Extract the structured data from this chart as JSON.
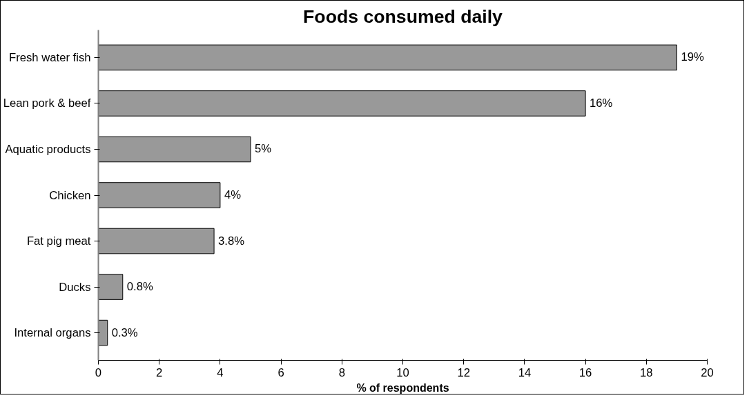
{
  "chart_data": {
    "type": "bar",
    "orientation": "horizontal",
    "title": "Foods consumed daily",
    "xlabel": "% of respondents",
    "categories": [
      "Fresh water fish",
      "Lean pork & beef",
      "Aquatic products",
      "Chicken",
      "Fat pig meat",
      "Ducks",
      "Internal organs"
    ],
    "values": [
      19,
      16,
      5,
      4,
      3.8,
      0.8,
      0.3
    ],
    "value_labels": [
      "19%",
      "16%",
      "5%",
      "4%",
      "3.8%",
      "0.8%",
      "0.3%"
    ],
    "color": "#999999",
    "xlim": [
      0,
      20
    ],
    "xticks": [
      0,
      2,
      4,
      6,
      8,
      10,
      12,
      14,
      16,
      18,
      20
    ],
    "grid": false
  }
}
